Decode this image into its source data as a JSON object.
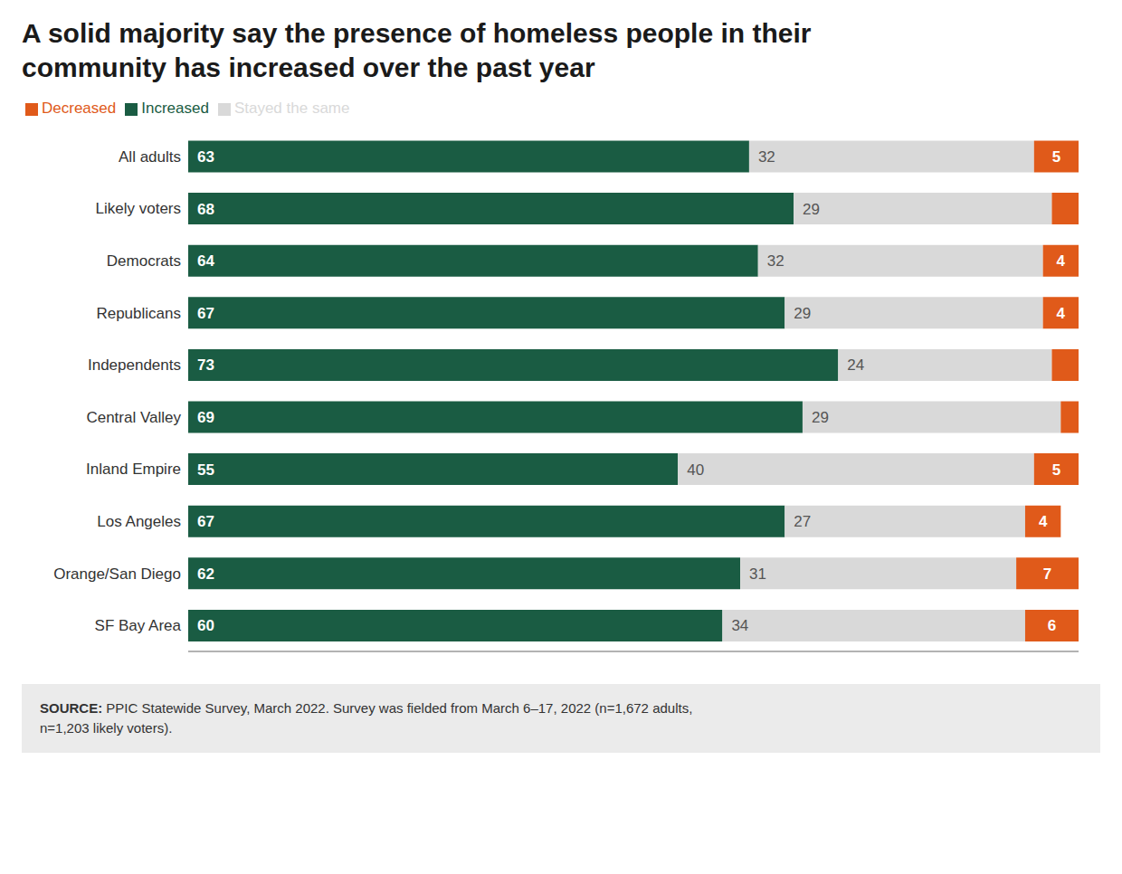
{
  "chart_data": {
    "type": "bar",
    "orientation": "horizontal",
    "stacked": true,
    "data_labels": true,
    "tick_labels": "y",
    "grid": false,
    "legend": "top left",
    "title": "A solid majority say the presence of homeless people in their\ncommunity has increased over the past year",
    "categories": [
      "All adults",
      "Likely voters",
      "Democrats",
      "Republicans",
      "Independents",
      "Central Valley",
      "Inland Empire",
      "Los Angeles",
      "Orange/San Diego",
      "SF Bay Area"
    ],
    "series": [
      {
        "name": "Increased",
        "color": "#1a5c43",
        "values": [
          63,
          68,
          64,
          67,
          73,
          69,
          55,
          67,
          62,
          60
        ]
      },
      {
        "name": "Stayed the same",
        "color": "#d9d9d9",
        "values": [
          32,
          29,
          32,
          29,
          24,
          29,
          40,
          27,
          31,
          34
        ]
      },
      {
        "name": "Decreased",
        "color": "#e05a1a",
        "values": [
          5,
          3,
          4,
          4,
          3,
          2,
          5,
          4,
          7,
          6
        ],
        "value_labels": [
          "5",
          null,
          "4",
          "4",
          null,
          null,
          "5",
          "4",
          "7",
          "6"
        ]
      }
    ],
    "xlim": [
      0,
      100
    ],
    "annotations": [
      "SOURCE:",
      " PPIC Statewide Survey, March 2022. Survey was fielded from March 6–17, 2022 (n=1,672 adults,\nn=1,203 likely voters)."
    ]
  }
}
